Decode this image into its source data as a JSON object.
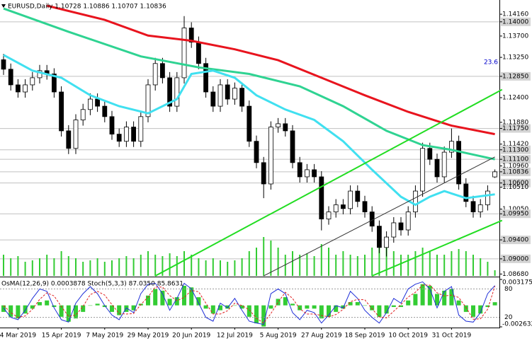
{
  "chart_data": [
    {
      "type": "candlestick",
      "title": "EURUSD,Daily  1.10728 1.10886 1.10707 1.10836",
      "categories": [
        null,
        null,
        "4 Mar 2019",
        null,
        null,
        null,
        null,
        null,
        "15 Apr 2019",
        null,
        null,
        null,
        null,
        null,
        "7 May 2019",
        null,
        null,
        null,
        null,
        null,
        "29 May 2019",
        null,
        null,
        null,
        null,
        null,
        "20 Jun 2019",
        null,
        null,
        null,
        null,
        null,
        "12 Jul 2019",
        null,
        null,
        null,
        null,
        null,
        "5 Aug 2019",
        null,
        null,
        null,
        null,
        null,
        "27 Aug 2019",
        null,
        null,
        null,
        null,
        null,
        "18 Sep 2019",
        null,
        null,
        null,
        null,
        null,
        "10 Oct 2019",
        null,
        null,
        null,
        null,
        null,
        "31 Oct 2019",
        null,
        null,
        null,
        null,
        null,
        null
      ],
      "open": [
        1.132,
        1.13,
        1.1267,
        1.1252,
        1.1267,
        1.1282,
        1.1297,
        1.129,
        1.1252,
        1.117,
        1.1133,
        1.1193,
        1.1215,
        1.1237,
        1.1222,
        1.12,
        1.1163,
        1.1148,
        1.1178,
        1.1148,
        1.12,
        1.1267,
        1.1312,
        1.1282,
        1.1222,
        1.1282,
        1.1387,
        1.1357,
        1.1312,
        1.1252,
        1.1222,
        1.1267,
        1.1237,
        1.126,
        1.1222,
        1.1148,
        1.1103,
        1.1058,
        1.1178,
        1.1185,
        1.117,
        1.1103,
        1.1073,
        1.1088,
        1.1073,
        1.0984,
        1.0999,
        1.1014,
        1.1006,
        1.1043,
        1.1021,
        1.0999,
        1.0969,
        1.0924,
        1.0946,
        1.0976,
        1.0961,
        1.0999,
        1.1043,
        1.1133,
        1.111,
        1.1073,
        1.1125,
        1.1148,
        1.1058,
        1.1021,
        1.0999,
        1.1014,
        1.10728
      ],
      "high": [
        1.1332,
        1.1312,
        1.1279,
        1.1279,
        1.1294,
        1.1309,
        1.1309,
        1.1302,
        1.1264,
        1.1182,
        1.1205,
        1.1227,
        1.1249,
        1.1249,
        1.1234,
        1.1212,
        1.1175,
        1.119,
        1.119,
        1.1212,
        1.1279,
        1.1324,
        1.1324,
        1.1294,
        1.1294,
        1.1412,
        1.1399,
        1.1369,
        1.1324,
        1.1264,
        1.1279,
        1.1279,
        1.1272,
        1.1272,
        1.1234,
        1.116,
        1.1115,
        1.119,
        1.1197,
        1.1197,
        1.1182,
        1.1115,
        1.11,
        1.11,
        1.1085,
        1.1011,
        1.1026,
        1.1026,
        1.1055,
        1.1055,
        1.1033,
        1.1011,
        1.0981,
        1.0958,
        1.0988,
        1.0988,
        1.1011,
        1.1055,
        1.1145,
        1.1145,
        1.1122,
        1.1137,
        1.1175,
        1.116,
        1.107,
        1.1033,
        1.1026,
        1.1055,
        1.10886
      ],
      "low": [
        1.1288,
        1.1255,
        1.124,
        1.124,
        1.1255,
        1.127,
        1.1278,
        1.124,
        1.1158,
        1.1121,
        1.1121,
        1.1181,
        1.1203,
        1.121,
        1.1188,
        1.1151,
        1.1136,
        1.1136,
        1.1136,
        1.1136,
        1.1188,
        1.1255,
        1.127,
        1.121,
        1.121,
        1.127,
        1.1345,
        1.13,
        1.124,
        1.121,
        1.121,
        1.1225,
        1.1225,
        1.121,
        1.1136,
        1.1091,
        1.1028,
        1.1046,
        1.1166,
        1.1158,
        1.1091,
        1.1061,
        1.1061,
        1.1061,
        1.096,
        1.0972,
        1.0987,
        1.0994,
        1.0994,
        1.1009,
        1.0987,
        1.0957,
        1.0912,
        1.0905,
        1.0934,
        1.0949,
        1.0949,
        1.0987,
        1.1031,
        1.1098,
        1.1061,
        1.1061,
        1.1113,
        1.1046,
        1.1009,
        1.0987,
        1.0987,
        1.1002,
        1.10707
      ],
      "close": [
        1.13,
        1.1267,
        1.1252,
        1.1267,
        1.1282,
        1.1297,
        1.129,
        1.1252,
        1.117,
        1.1133,
        1.1193,
        1.1215,
        1.1237,
        1.1222,
        1.12,
        1.1163,
        1.1148,
        1.1178,
        1.1148,
        1.12,
        1.1267,
        1.1312,
        1.1282,
        1.1222,
        1.1282,
        1.1387,
        1.1357,
        1.1312,
        1.1252,
        1.1222,
        1.1267,
        1.1237,
        1.126,
        1.1222,
        1.1148,
        1.1103,
        1.1058,
        1.1178,
        1.1185,
        1.117,
        1.1103,
        1.1073,
        1.1088,
        1.1073,
        1.0984,
        1.0999,
        1.1014,
        1.1006,
        1.1043,
        1.1021,
        1.0999,
        1.0969,
        1.0924,
        1.0946,
        1.0976,
        1.0961,
        1.0999,
        1.1043,
        1.1133,
        1.111,
        1.1073,
        1.1125,
        1.1148,
        1.1058,
        1.1021,
        1.0999,
        1.1014,
        1.1043,
        1.10836
      ],
      "up_color": "#ffffff",
      "down_color": "#000000",
      "ylim": [
        1.0864,
        1.1446
      ],
      "yticks": [
        {
          "value": 1.1416,
          "label": "1.14160"
        },
        {
          "value": 1.14,
          "label": "1.14000",
          "highlight": true
        },
        {
          "value": 1.137,
          "label": "1.13700"
        },
        {
          "value": 1.1325,
          "label": "1.13250"
        },
        {
          "value": 1.1285,
          "label": "1.12850",
          "highlight": true
        },
        {
          "value": 1.124,
          "label": "1.12400"
        },
        {
          "value": 1.1188,
          "label": "1.11880"
        },
        {
          "value": 1.1175,
          "label": "1.11750",
          "highlight": true
        },
        {
          "value": 1.1142,
          "label": "1.11420"
        },
        {
          "value": 1.113,
          "label": "1.11300",
          "highlight": true
        },
        {
          "value": 1.111,
          "label": "1.11100",
          "highlight": true
        },
        {
          "value": 1.1096,
          "label": "1.10960"
        },
        {
          "value": 1.10836,
          "label": "1.10836",
          "highlight": true
        },
        {
          "value": 1.106,
          "label": "1.10600",
          "highlight": true
        },
        {
          "value": 1.1051,
          "label": "1.10510"
        },
        {
          "value": 1.1005,
          "label": "1.10050"
        },
        {
          "value": 1.0995,
          "label": "1.09950",
          "highlight": true
        },
        {
          "value": 1.094,
          "label": "1.09400",
          "highlight": true
        },
        {
          "value": 1.09,
          "label": "1.09000",
          "highlight": true
        },
        {
          "value": 1.0868,
          "label": "1.08680"
        }
      ],
      "lines": [
        {
          "color": "#e8141e",
          "width": 3,
          "x": [
            6,
            14,
            20,
            26,
            32,
            38,
            44,
            50,
            56,
            62,
            68
          ],
          "values": [
            1.1434,
            1.1404,
            1.1371,
            1.136,
            1.1342,
            1.1319,
            1.1282,
            1.1245,
            1.121,
            1.1181,
            1.1163
          ]
        },
        {
          "color": "#2fd392",
          "width": 3,
          "x": [
            0,
            9,
            19,
            27,
            34,
            41,
            47,
            53,
            58,
            62,
            68
          ],
          "values": [
            1.1428,
            1.1379,
            1.1327,
            1.1304,
            1.129,
            1.1264,
            1.1222,
            1.117,
            1.114,
            1.113,
            1.111
          ]
        },
        {
          "color": "#40e0f0",
          "width": 3,
          "x": [
            0,
            4,
            8,
            12,
            16,
            20,
            24,
            26,
            29,
            32,
            35,
            39,
            43,
            47,
            51,
            55,
            57,
            59,
            61,
            64,
            68
          ],
          "values": [
            1.133,
            1.1297,
            1.1282,
            1.1245,
            1.1222,
            1.1207,
            1.1237,
            1.129,
            1.1297,
            1.1282,
            1.1245,
            1.1215,
            1.1193,
            1.1148,
            1.1088,
            1.1031,
            1.1014,
            1.1031,
            1.1043,
            1.1028,
            1.1036
          ]
        },
        {
          "color": "#22dd22",
          "width": 2,
          "x": [
            21,
            69
          ],
          "values": [
            1.0864,
            1.1257
          ]
        },
        {
          "color": "#22dd22",
          "width": 2,
          "x": [
            51,
            69
          ],
          "values": [
            1.0864,
            1.0981
          ]
        },
        {
          "color": "#333333",
          "width": 1,
          "x": [
            36,
            68
          ],
          "values": [
            1.0864,
            1.1115
          ]
        }
      ],
      "volume": {
        "color": "#33cc33",
        "ylim": [
          0,
          390
        ],
        "values": [
          30,
          25,
          28,
          20,
          22,
          25,
          30,
          25,
          35,
          28,
          25,
          20,
          22,
          25,
          20,
          22,
          25,
          28,
          25,
          30,
          35,
          30,
          28,
          32,
          28,
          35,
          30,
          25,
          22,
          25,
          22,
          20,
          22,
          25,
          35,
          40,
          55,
          50,
          40,
          30,
          35,
          30,
          32,
          28,
          45,
          40,
          30,
          35,
          30,
          28,
          30,
          40,
          45,
          40,
          35,
          30,
          30,
          35,
          40,
          35,
          30,
          30,
          35,
          38,
          35,
          30,
          25,
          20,
          8
        ]
      },
      "fibo": {
        "label": "23.6",
        "value": 1.1285,
        "color": "#0000cc"
      }
    },
    {
      "type": "oscillator",
      "title": "OsMA(12,26,9) 0.0003878  Stoch(5,3,3) 87.0350 85.8631",
      "histogram": {
        "color": "#33cc33",
        "ylim": [
          -0.002632,
          0.003175
        ],
        "yticks": [
          0.003175,
          -0.002632
        ],
        "values": [
          -0.0008,
          -0.0014,
          -0.0016,
          -0.001,
          -0.0004,
          0.0004,
          0.0006,
          -0.0002,
          -0.0014,
          -0.002,
          -0.0016,
          -0.0008,
          0,
          0.0002,
          -0.0002,
          -0.0008,
          -0.0012,
          -0.0008,
          -0.0006,
          0.0002,
          0.0012,
          0.002,
          0.0018,
          0.0008,
          0.001,
          0.0024,
          0.0022,
          0.001,
          -0.0004,
          -0.001,
          -0.0006,
          -0.0004,
          0,
          -0.0004,
          -0.0014,
          -0.0022,
          -0.0026,
          -0.0004,
          0.0008,
          0.001,
          0.0002,
          -0.0006,
          -0.0004,
          -0.0004,
          -0.0016,
          -0.0014,
          -0.0008,
          -0.0004,
          0.0004,
          0.0004,
          0,
          -0.0006,
          -0.0014,
          -0.001,
          -0.0002,
          -0.0002,
          0.0006,
          0.0014,
          0.0026,
          0.0024,
          0.0014,
          0.0018,
          0.002,
          0.0006,
          -0.0008,
          -0.0014,
          -0.001,
          -0.0002,
          0.0003878
        ]
      },
      "stoch": {
        "ylim": [
          0,
          100
        ],
        "yticks": [
          80,
          20
        ],
        "series": [
          {
            "color": "#1f2fd8",
            "values": [
              40,
              20,
              15,
              35,
              60,
              80,
              75,
              40,
              15,
              10,
              50,
              70,
              85,
              70,
              45,
              25,
              15,
              40,
              30,
              70,
              90,
              92,
              70,
              35,
              60,
              92,
              80,
              50,
              20,
              12,
              50,
              40,
              60,
              35,
              12,
              8,
              5,
              70,
              80,
              70,
              30,
              15,
              35,
              30,
              8,
              25,
              45,
              40,
              75,
              60,
              35,
              20,
              8,
              30,
              60,
              50,
              80,
              90,
              95,
              80,
              40,
              75,
              85,
              25,
              12,
              10,
              30,
              70,
              87.035
            ]
          },
          {
            "color": "#e02020",
            "dash": true,
            "values": [
              45,
              30,
              20,
              23,
              37,
              58,
              72,
              65,
              43,
              22,
              25,
              43,
              68,
              75,
              67,
              47,
              28,
              27,
              28,
              47,
              63,
              84,
              84,
              66,
              55,
              62,
              77,
              74,
              50,
              27,
              27,
              34,
              50,
              45,
              36,
              18,
              8,
              28,
              52,
              73,
              60,
              38,
              27,
              27,
              24,
              21,
              26,
              37,
              53,
              58,
              57,
              38,
              21,
              19,
              33,
              47,
              63,
              73,
              88,
              88,
              72,
              65,
              67,
              62,
              41,
              16,
              17,
              37,
              85.8631
            ]
          }
        ]
      }
    }
  ]
}
